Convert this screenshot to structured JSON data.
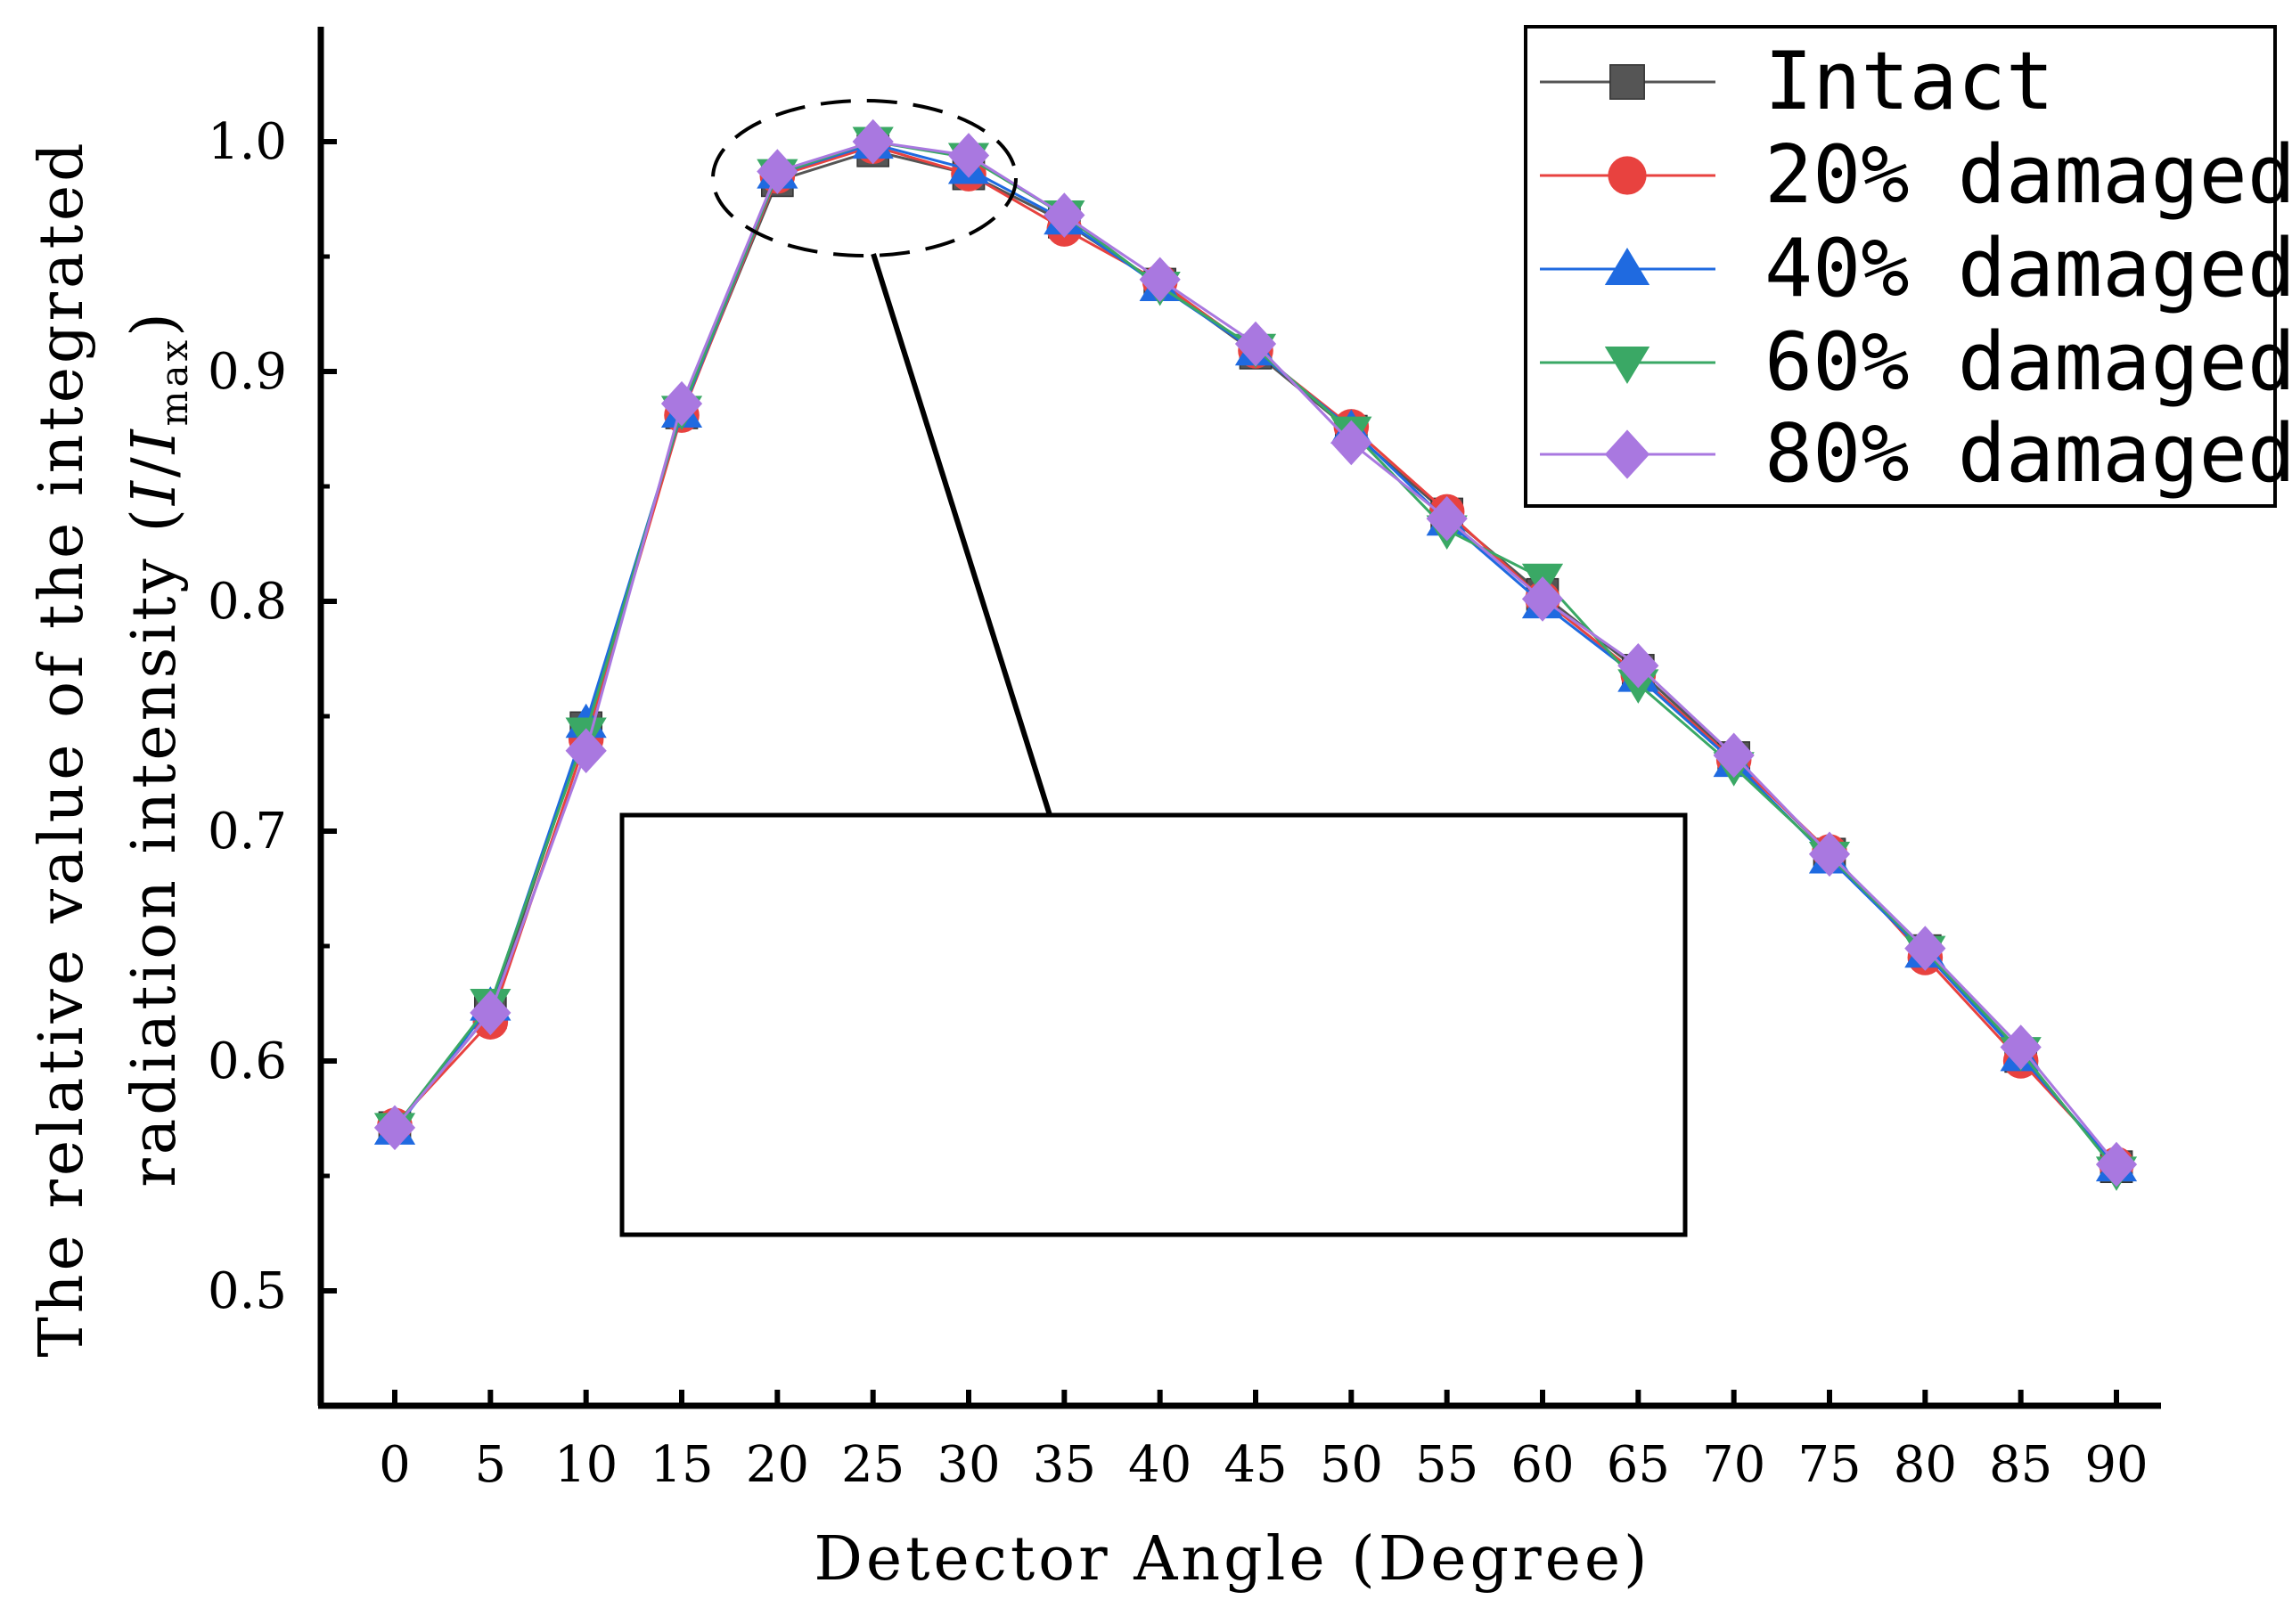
{
  "chart_data": {
    "type": "line",
    "xlabel": "Detector Angle (Degree)",
    "ylabel_line1": "The relative value of the integrated",
    "ylabel_line2_prefix": "radiation intensity (",
    "ylabel_I": "I",
    "ylabel_slash": "/",
    "ylabel_I2": "I",
    "ylabel_sub": "max",
    "ylabel_close": ")",
    "x": [
      0,
      5,
      10,
      15,
      20,
      25,
      30,
      35,
      40,
      45,
      50,
      55,
      60,
      65,
      70,
      75,
      80,
      85,
      90
    ],
    "x_tick_labels": [
      "0",
      "5",
      "10",
      "15",
      "20",
      "25",
      "30",
      "35",
      "40",
      "45",
      "50",
      "55",
      "60",
      "65",
      "70",
      "75",
      "80",
      "85",
      "90"
    ],
    "xlim": [
      -4,
      96
    ],
    "ylim": [
      0.45,
      1.05
    ],
    "y_ticks": [
      0.5,
      0.6,
      0.7,
      0.8,
      0.9,
      1.0
    ],
    "y_tick_labels": [
      "0.5",
      "0.6",
      "0.7",
      "0.8",
      "0.9",
      "1.0"
    ],
    "y_minor_ticks": [
      0.55,
      0.65,
      0.75,
      0.85,
      0.95
    ],
    "legend_position": "top-right",
    "series": [
      {
        "name": "Intact",
        "color": "#555555",
        "marker": "square",
        "values": [
          0.571,
          0.621,
          0.745,
          0.882,
          0.983,
          0.996,
          0.986,
          0.965,
          0.938,
          0.908,
          0.874,
          0.838,
          0.803,
          0.77,
          0.732,
          0.69,
          0.648,
          0.602,
          0.554
        ]
      },
      {
        "name": "20% damaged",
        "color": "#e8423f",
        "marker": "circle",
        "values": [
          0.572,
          0.617,
          0.74,
          0.881,
          0.985,
          0.998,
          0.986,
          0.962,
          0.939,
          0.909,
          0.876,
          0.839,
          0.801,
          0.768,
          0.731,
          0.691,
          0.645,
          0.6,
          0.555
        ]
      },
      {
        "name": "40% damaged",
        "color": "#1f6ae0",
        "marker": "triangle-up",
        "values": [
          0.57,
          0.624,
          0.747,
          0.882,
          0.986,
          0.999,
          0.988,
          0.966,
          0.937,
          0.909,
          0.875,
          0.835,
          0.799,
          0.767,
          0.73,
          0.688,
          0.647,
          0.602,
          0.554
        ]
      },
      {
        "name": "60% damaged",
        "color": "#3aa865",
        "marker": "triangle-down",
        "values": [
          0.571,
          0.625,
          0.743,
          0.883,
          0.986,
          1.0,
          0.993,
          0.968,
          0.937,
          0.91,
          0.874,
          0.831,
          0.81,
          0.764,
          0.728,
          0.689,
          0.648,
          0.604,
          0.552
        ]
      },
      {
        "name": "80% damaged",
        "color": "#a978e0",
        "marker": "diamond",
        "values": [
          0.571,
          0.621,
          0.735,
          0.886,
          0.987,
          1.0,
          0.994,
          0.968,
          0.94,
          0.912,
          0.869,
          0.836,
          0.801,
          0.772,
          0.733,
          0.69,
          0.649,
          0.606,
          0.555
        ]
      }
    ]
  }
}
